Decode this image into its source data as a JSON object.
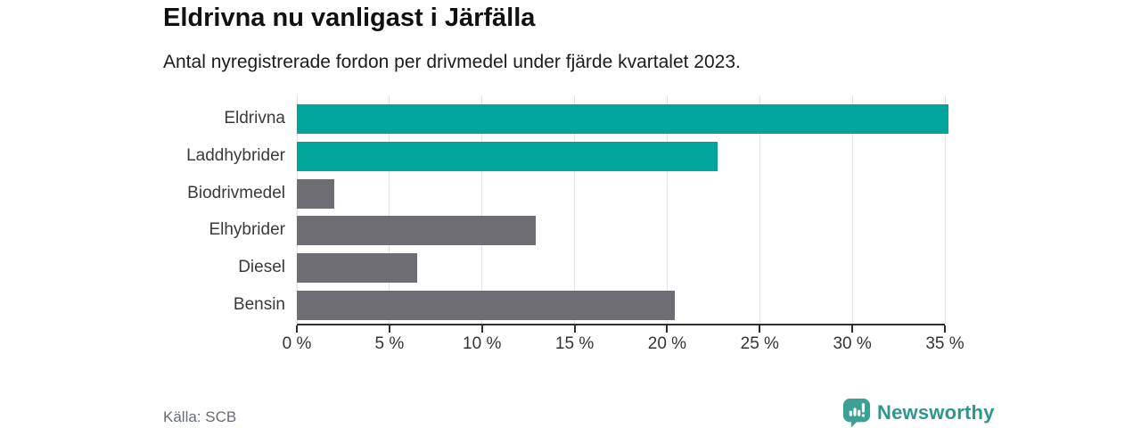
{
  "header": {
    "title": "Eldrivna nu vanligast i Järfälla",
    "subtitle": "Antal nyregistrerade fordon per drivmedel under fjärde kvartalet 2023."
  },
  "chart_data": {
    "type": "bar",
    "orientation": "horizontal",
    "categories": [
      "Eldrivna",
      "Laddhybrider",
      "Biodrivmedel",
      "Elhybrider",
      "Diesel",
      "Bensin"
    ],
    "values": [
      35.2,
      22.7,
      2.0,
      12.9,
      6.5,
      20.4
    ],
    "unit": "%",
    "bar_colors": [
      "#00a49b",
      "#00a49b",
      "#6e6d73",
      "#6e6d73",
      "#6e6d73",
      "#6e6d73"
    ],
    "highlight_color": "#00a49b",
    "neutral_color": "#6e6d73",
    "xlim": [
      0,
      35
    ],
    "x_ticks": [
      0,
      5,
      10,
      15,
      20,
      25,
      30,
      35
    ],
    "x_tick_labels": [
      "0 %",
      "5 %",
      "10 %",
      "15 %",
      "20 %",
      "25 %",
      "30 %",
      "35 %"
    ],
    "grid": "vertical",
    "legend": "none",
    "title": "Eldrivna nu vanligast i Järfälla",
    "xlabel": "",
    "ylabel": ""
  },
  "footer": {
    "source_label": "Källa: SCB"
  },
  "brand": {
    "name": "Newsworthy",
    "icon": "newsworthy-pin-barchart-icon",
    "icon_color": "#3ea094",
    "text_color": "#2e968c"
  }
}
